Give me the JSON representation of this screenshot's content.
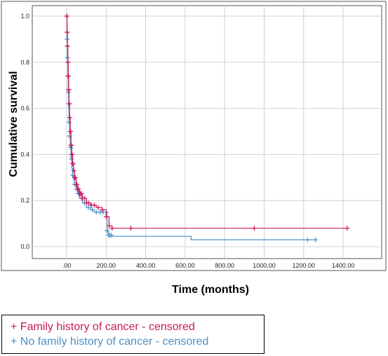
{
  "chart_data": {
    "type": "line",
    "title": "",
    "xlabel": "Time (months)",
    "ylabel": "Cumulative survival",
    "xlim": [
      0,
      1500
    ],
    "ylim": [
      0,
      1.05
    ],
    "x_ticks": [
      0,
      200,
      400,
      600,
      800,
      1000,
      1200,
      1400
    ],
    "x_tick_labels": [
      ".00",
      "200.00",
      "400.00",
      "600.00",
      "800.00",
      "1000.00",
      "1200.00",
      "1400.00"
    ],
    "y_ticks": [
      0,
      0.2,
      0.4,
      0.6,
      0.8,
      1.0
    ],
    "y_tick_labels": [
      "0.0",
      "0.2",
      "0.4",
      "0.6",
      "0.8",
      "1.0"
    ],
    "grid": true,
    "legend_position": "bottom-left",
    "series": [
      {
        "name": "Family history of cancer",
        "color": "#c8195a",
        "x": [
          0,
          2,
          4,
          6,
          8,
          10,
          12,
          15,
          18,
          22,
          26,
          30,
          35,
          40,
          48,
          56,
          65,
          80,
          100,
          120,
          150,
          180,
          200,
          215,
          230,
          1420
        ],
        "y": [
          1.0,
          0.93,
          0.87,
          0.8,
          0.74,
          0.68,
          0.62,
          0.56,
          0.5,
          0.44,
          0.4,
          0.36,
          0.33,
          0.3,
          0.27,
          0.25,
          0.23,
          0.21,
          0.19,
          0.18,
          0.17,
          0.16,
          0.13,
          0.09,
          0.08,
          0.08
        ],
        "censored_x": [
          0,
          1,
          2,
          3,
          4,
          5,
          6,
          7,
          8,
          9,
          10,
          11,
          12,
          14,
          16,
          18,
          20,
          22,
          24,
          26,
          28,
          30,
          33,
          36,
          40,
          44,
          48,
          52,
          56,
          60,
          65,
          70,
          75,
          80,
          90,
          100,
          110,
          125,
          140,
          160,
          180,
          200,
          215,
          230,
          325,
          950,
          1420
        ],
        "legend_label": "+ Family history of cancer - censored"
      },
      {
        "name": "No family history of cancer",
        "color": "#4a90c8",
        "x": [
          0,
          2,
          4,
          6,
          8,
          10,
          12,
          15,
          18,
          22,
          26,
          30,
          35,
          40,
          48,
          56,
          65,
          80,
          100,
          120,
          140,
          160,
          180,
          200,
          205,
          210,
          230,
          620,
          630,
          1260
        ],
        "y": [
          1.0,
          0.9,
          0.82,
          0.74,
          0.67,
          0.6,
          0.54,
          0.48,
          0.43,
          0.38,
          0.34,
          0.31,
          0.29,
          0.27,
          0.25,
          0.23,
          0.21,
          0.19,
          0.17,
          0.16,
          0.15,
          0.15,
          0.15,
          0.15,
          0.07,
          0.05,
          0.045,
          0.045,
          0.03,
          0.03
        ],
        "censored_x": [
          2,
          4,
          6,
          9,
          12,
          15,
          20,
          25,
          30,
          40,
          50,
          60,
          75,
          90,
          110,
          130,
          150,
          170,
          185,
          200,
          205,
          212,
          218,
          225,
          1220,
          1260
        ],
        "legend_label": "+ No family history of cancer - censored"
      }
    ]
  }
}
